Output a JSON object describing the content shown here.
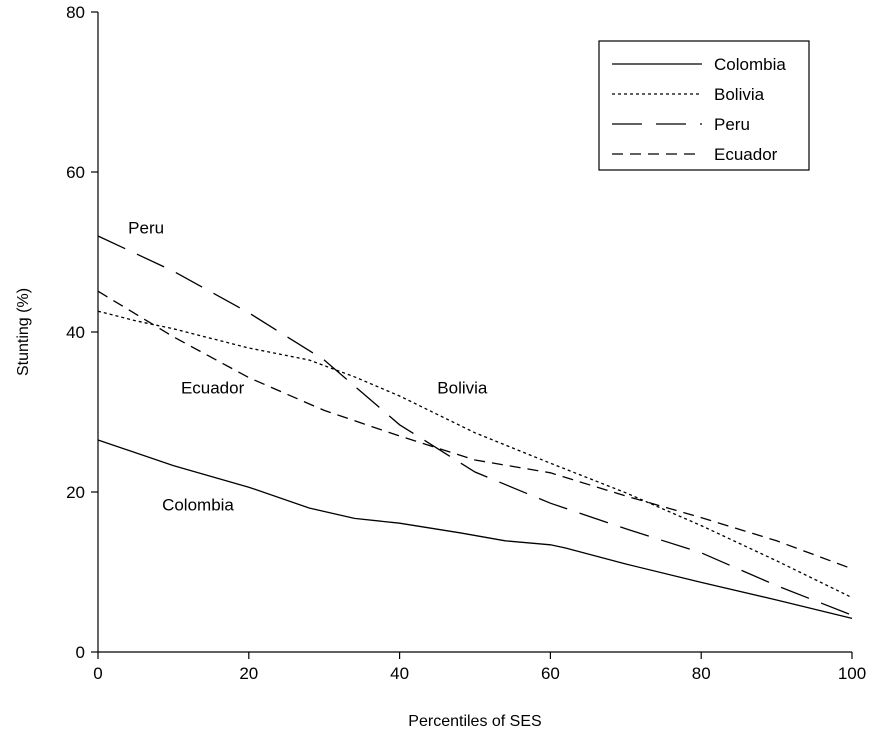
{
  "chart_data": {
    "type": "line",
    "title": "",
    "xlabel": "Percentiles of SES",
    "ylabel": "Stunting (%)",
    "xlim": [
      0,
      100
    ],
    "ylim": [
      0,
      80
    ],
    "x_ticks": [
      0,
      20,
      40,
      60,
      80,
      100
    ],
    "y_ticks": [
      0,
      20,
      40,
      60,
      80
    ],
    "grid": false,
    "legend_position": "top-right",
    "series": [
      {
        "name": "Colombia",
        "style": "solid",
        "x": [
          0,
          10,
          20,
          28,
          34,
          40,
          48,
          54,
          60,
          62,
          70,
          80,
          90,
          100
        ],
        "y": [
          26.5,
          23.3,
          20.6,
          18.0,
          16.7,
          16.1,
          14.9,
          13.9,
          13.4,
          13.0,
          11.0,
          8.7,
          6.5,
          4.2
        ]
      },
      {
        "name": "Bolivia",
        "style": "dotted",
        "x": [
          0,
          5,
          10,
          20,
          28,
          34,
          40,
          50,
          60,
          70,
          80,
          90,
          100
        ],
        "y": [
          42.6,
          41.4,
          40.4,
          38.0,
          36.5,
          34.4,
          32.0,
          27.4,
          23.6,
          19.9,
          15.8,
          11.4,
          6.8
        ]
      },
      {
        "name": "Peru",
        "style": "long-dash",
        "x": [
          0,
          10,
          20,
          30,
          40,
          50,
          60,
          70,
          80,
          90,
          100
        ],
        "y": [
          52.0,
          47.6,
          42.4,
          36.5,
          28.4,
          22.5,
          18.6,
          15.4,
          12.4,
          8.3,
          4.6
        ]
      },
      {
        "name": "Ecuador",
        "style": "dashed",
        "x": [
          0,
          10,
          20,
          30,
          40,
          50,
          60,
          70,
          80,
          90,
          100
        ],
        "y": [
          45.1,
          39.4,
          34.3,
          30.2,
          27.0,
          24.0,
          22.4,
          19.5,
          16.8,
          13.9,
          10.4
        ]
      }
    ],
    "annotations": [
      {
        "text": "Peru",
        "x": 4,
        "y": 52.3
      },
      {
        "text": "Ecuador",
        "x": 11,
        "y": 32.3
      },
      {
        "text": "Bolivia",
        "x": 45,
        "y": 32.3
      },
      {
        "text": "Colombia",
        "x": 8.5,
        "y": 17.7
      }
    ]
  }
}
